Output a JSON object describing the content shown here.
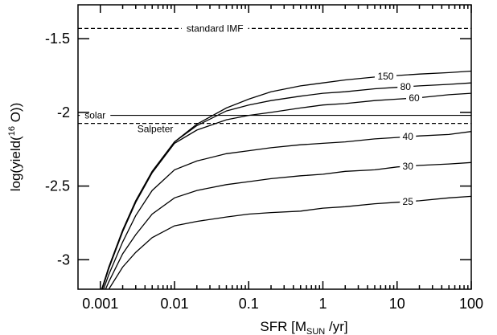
{
  "chart_data": {
    "type": "line",
    "xlabel": {
      "prefix": "SFR [M",
      "subscript": "SUN",
      "suffix": " /yr]"
    },
    "ylabel": {
      "prefix": "log(yield(",
      "superscript": "16",
      "suffix": " O))"
    },
    "x_scale": "log",
    "xlim": [
      0.0005,
      100
    ],
    "ylim": [
      -3.2,
      -1.27
    ],
    "x_ticks": [
      {
        "value": 0.001,
        "label": "0.001"
      },
      {
        "value": 0.01,
        "label": "0.01"
      },
      {
        "value": 0.1,
        "label": "0.1"
      },
      {
        "value": 1,
        "label": "1"
      },
      {
        "value": 10,
        "label": "10"
      },
      {
        "value": 100,
        "label": "100"
      }
    ],
    "y_ticks": [
      {
        "value": -1.5,
        "label": "-1.5"
      },
      {
        "value": -2,
        "label": "-2"
      },
      {
        "value": -2.5,
        "label": "-2.5"
      },
      {
        "value": -3,
        "label": "-3"
      }
    ],
    "grid": false,
    "reference_lines": [
      {
        "name": "standard IMF",
        "y": -1.43,
        "style": "dashed",
        "label_x": 0.035
      },
      {
        "name": "solar",
        "y": -2.02,
        "style": "solid",
        "label_x": 0.00085
      },
      {
        "name": "Salpeter",
        "y": -2.075,
        "style": "dashed",
        "label_x": 0.0055
      }
    ],
    "series": [
      {
        "name": "150",
        "label_x": 7,
        "x": [
          0.001,
          0.0013,
          0.002,
          0.003,
          0.005,
          0.01,
          0.02,
          0.05,
          0.1,
          0.2,
          0.5,
          1,
          2,
          5,
          10,
          20,
          50,
          100
        ],
        "y": [
          -3.23,
          -3.05,
          -2.8,
          -2.6,
          -2.4,
          -2.2,
          -2.08,
          -1.97,
          -1.91,
          -1.86,
          -1.82,
          -1.8,
          -1.78,
          -1.76,
          -1.75,
          -1.74,
          -1.73,
          -1.72
        ]
      },
      {
        "name": "80",
        "label_x": 13,
        "x": [
          0.001,
          0.0013,
          0.002,
          0.003,
          0.005,
          0.01,
          0.02,
          0.05,
          0.1,
          0.2,
          0.5,
          1,
          2,
          5,
          10,
          20,
          50,
          100
        ],
        "y": [
          -3.23,
          -3.05,
          -2.8,
          -2.6,
          -2.4,
          -2.2,
          -2.09,
          -1.99,
          -1.95,
          -1.92,
          -1.89,
          -1.87,
          -1.86,
          -1.84,
          -1.83,
          -1.82,
          -1.81,
          -1.8
        ]
      },
      {
        "name": "60",
        "label_x": 17,
        "x": [
          0.001,
          0.0013,
          0.002,
          0.003,
          0.005,
          0.01,
          0.02,
          0.05,
          0.1,
          0.2,
          0.5,
          1,
          2,
          5,
          10,
          20,
          50,
          100
        ],
        "y": [
          -3.24,
          -3.06,
          -2.81,
          -2.61,
          -2.41,
          -2.21,
          -2.12,
          -2.05,
          -2.02,
          -2,
          -1.97,
          -1.95,
          -1.94,
          -1.92,
          -1.91,
          -1.9,
          -1.88,
          -1.87
        ]
      },
      {
        "name": "40",
        "label_x": 14,
        "x": [
          0.001,
          0.0013,
          0.002,
          0.003,
          0.005,
          0.01,
          0.02,
          0.05,
          0.1,
          0.2,
          0.5,
          1,
          2,
          5,
          10,
          20,
          50,
          100
        ],
        "y": [
          -3.26,
          -3.1,
          -2.88,
          -2.7,
          -2.53,
          -2.39,
          -2.33,
          -2.28,
          -2.26,
          -2.24,
          -2.22,
          -2.21,
          -2.2,
          -2.18,
          -2.17,
          -2.16,
          -2.15,
          -2.13
        ]
      },
      {
        "name": "30",
        "label_x": 14,
        "x": [
          0.001,
          0.0013,
          0.002,
          0.003,
          0.005,
          0.01,
          0.02,
          0.05,
          0.1,
          0.2,
          0.5,
          1,
          2,
          5,
          10,
          20,
          50,
          100
        ],
        "y": [
          -3.28,
          -3.15,
          -2.96,
          -2.83,
          -2.69,
          -2.58,
          -2.53,
          -2.49,
          -2.47,
          -2.45,
          -2.43,
          -2.42,
          -2.4,
          -2.39,
          -2.37,
          -2.36,
          -2.35,
          -2.34
        ]
      },
      {
        "name": "25",
        "label_x": 14,
        "x": [
          0.001,
          0.0013,
          0.002,
          0.003,
          0.005,
          0.01,
          0.02,
          0.05,
          0.1,
          0.2,
          0.5,
          1,
          2,
          5,
          10,
          20,
          50,
          100
        ],
        "y": [
          -3.3,
          -3.2,
          -3.05,
          -2.95,
          -2.85,
          -2.77,
          -2.74,
          -2.71,
          -2.69,
          -2.68,
          -2.67,
          -2.65,
          -2.64,
          -2.62,
          -2.61,
          -2.6,
          -2.58,
          -2.57
        ]
      }
    ]
  }
}
